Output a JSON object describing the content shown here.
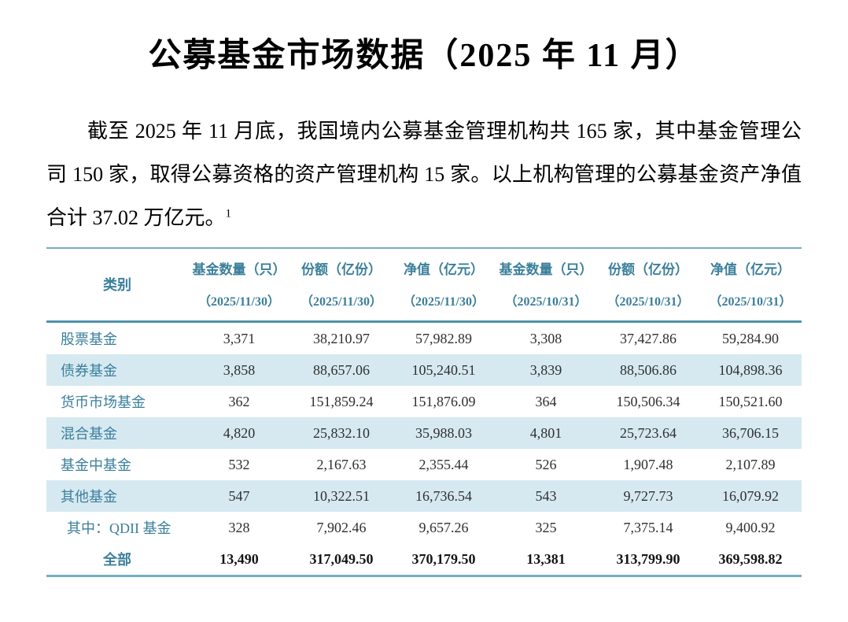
{
  "doc": {
    "title": "公募基金市场数据（2025 年 11 月）",
    "paragraph": "截至 2025 年 11 月底，我国境内公募基金管理机构共 165 家，其中基金管理公司 150 家，取得公募资格的资产管理机构 15 家。以上机构管理的公募基金资产净值合计 37.02 万亿元。",
    "footnote_ref": "1"
  },
  "colors": {
    "accent_teal": "#3b7f9b",
    "row_shade": "#d6e9f1",
    "table_border": "#74afc0",
    "header_divider": "#4f93ac",
    "number_text": "#2f2f2f"
  },
  "table": {
    "category_header": "类别",
    "headers": [
      {
        "label": "基金数量（只）",
        "sub": "（2025/11/30）"
      },
      {
        "label": "份额（亿份）",
        "sub": "（2025/11/30）"
      },
      {
        "label": "净值（亿元）",
        "sub": "（2025/11/30）"
      },
      {
        "label": "基金数量（只）",
        "sub": "（2025/10/31）"
      },
      {
        "label": "份额（亿份）",
        "sub": "（2025/10/31）"
      },
      {
        "label": "净值（亿元）",
        "sub": "（2025/10/31）"
      }
    ],
    "rows": [
      {
        "label": "股票基金",
        "values": [
          "3,371",
          "38,210.97",
          "57,982.89",
          "3,308",
          "37,427.86",
          "59,284.90"
        ],
        "shaded": false,
        "indent": false,
        "total": false
      },
      {
        "label": "债券基金",
        "values": [
          "3,858",
          "88,657.06",
          "105,240.51",
          "3,839",
          "88,506.86",
          "104,898.36"
        ],
        "shaded": true,
        "indent": false,
        "total": false
      },
      {
        "label": "货币市场基金",
        "values": [
          "362",
          "151,859.24",
          "151,876.09",
          "364",
          "150,506.34",
          "150,521.60"
        ],
        "shaded": false,
        "indent": false,
        "total": false
      },
      {
        "label": "混合基金",
        "values": [
          "4,820",
          "25,832.10",
          "35,988.03",
          "4,801",
          "25,723.64",
          "36,706.15"
        ],
        "shaded": true,
        "indent": false,
        "total": false
      },
      {
        "label": "基金中基金",
        "values": [
          "532",
          "2,167.63",
          "2,355.44",
          "526",
          "1,907.48",
          "2,107.89"
        ],
        "shaded": false,
        "indent": false,
        "total": false
      },
      {
        "label": "其他基金",
        "values": [
          "547",
          "10,322.51",
          "16,736.54",
          "543",
          "9,727.73",
          "16,079.92"
        ],
        "shaded": true,
        "indent": false,
        "total": false
      },
      {
        "label": "其中：QDII 基金",
        "values": [
          "328",
          "7,902.46",
          "9,657.26",
          "325",
          "7,375.14",
          "9,400.92"
        ],
        "shaded": false,
        "indent": true,
        "total": false
      },
      {
        "label": "全部",
        "values": [
          "13,490",
          "317,049.50",
          "370,179.50",
          "13,381",
          "313,799.90",
          "369,598.82"
        ],
        "shaded": false,
        "indent": false,
        "total": true
      }
    ]
  }
}
